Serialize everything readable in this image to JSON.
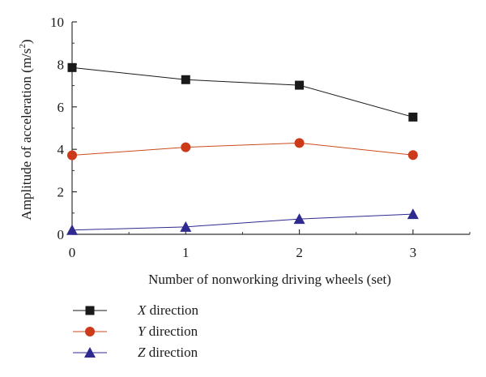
{
  "chart_data": {
    "type": "line",
    "title": "",
    "xlabel": "Number of nonworking driving wheels (set)",
    "ylabel_main": "Amplitude of acceleration (m/s",
    "ylabel_sup": "2",
    "ylabel_tail": ")",
    "x": [
      0,
      1,
      2,
      3
    ],
    "x_ticks": [
      "0",
      "1",
      "2",
      "3"
    ],
    "xlim": [
      0,
      3.5
    ],
    "ylim": [
      0,
      10
    ],
    "y_ticks": [
      "0",
      "2",
      "4",
      "6",
      "8",
      "10"
    ],
    "grid": false,
    "legend_position": "bottom-left",
    "series": [
      {
        "name": "X",
        "name_suffix": " direction",
        "marker": "square",
        "color": "#1a1a1a",
        "marker_color": "#1a1a1a",
        "values": [
          7.85,
          7.28,
          7.02,
          5.52
        ]
      },
      {
        "name": "Y",
        "name_suffix": " direction",
        "marker": "circle",
        "color": "#cc4a1f",
        "marker_color": "#cc3a1a",
        "values": [
          3.72,
          4.1,
          4.3,
          3.73
        ]
      },
      {
        "name": "Z",
        "name_suffix": " direction",
        "marker": "triangle",
        "color": "#2f2a8f",
        "marker_color": "#2f2a8f",
        "values": [
          0.2,
          0.35,
          0.72,
          0.95
        ]
      }
    ]
  }
}
